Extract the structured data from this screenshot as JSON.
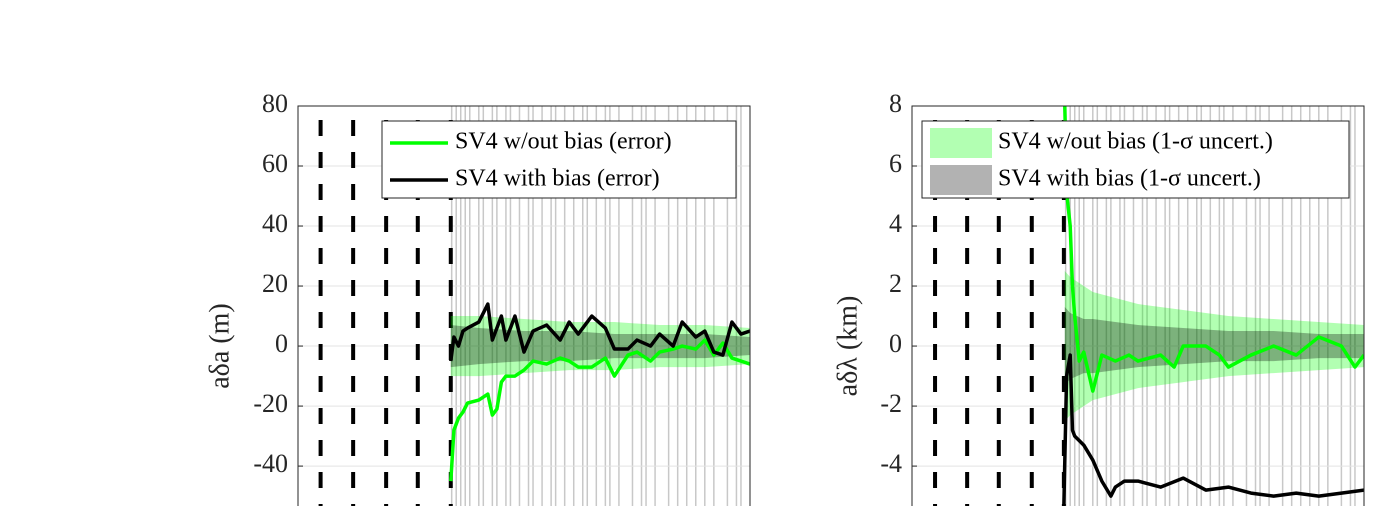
{
  "chart_data": [
    {
      "type": "line",
      "ylabel": "aδa (m)",
      "xlim": [
        0,
        100
      ],
      "ylim": [
        -53.3,
        80
      ],
      "yticks": [
        -40,
        -20,
        0,
        20,
        40,
        60,
        80
      ],
      "grid": true,
      "legend": "upper right",
      "legend_from": "series",
      "dashed_x": [
        5,
        12.2,
        19.5,
        26.5,
        33.8
      ],
      "vlines_x": [
        34,
        35,
        36,
        37,
        38,
        40,
        41,
        43,
        44,
        46,
        47,
        49,
        51,
        52,
        54,
        56,
        57,
        59,
        61,
        63,
        64,
        66,
        68,
        69,
        71,
        74,
        76,
        77,
        79,
        82,
        84,
        86,
        88,
        90,
        92,
        95,
        97,
        98
      ],
      "bands": [
        {
          "color": "#00ff00",
          "opacity": 0.3,
          "x": [
            33.8,
            40,
            50,
            60,
            70,
            80,
            90,
            100
          ],
          "values": [
            10,
            10,
            9,
            8,
            8,
            7,
            7,
            6
          ]
        },
        {
          "color": "#000000",
          "opacity": 0.3,
          "x": [
            33.8,
            40,
            50,
            60,
            70,
            80,
            90,
            100
          ],
          "values": [
            7,
            6,
            5,
            5,
            4,
            4,
            4,
            3
          ]
        }
      ],
      "series": [
        {
          "name": "SV4 w/out bias (error)",
          "color": "#00ff00",
          "x": [
            33.8,
            34.5,
            35.5,
            36.5,
            37.5,
            40,
            42,
            43,
            44,
            45,
            46,
            48,
            50,
            52,
            55,
            58,
            60,
            62,
            65,
            68,
            70,
            73,
            75,
            78,
            80,
            83,
            85,
            88,
            90,
            92,
            94,
            96,
            98,
            100
          ],
          "values": [
            -45,
            -28,
            -24,
            -22,
            -19,
            -18,
            -16,
            -23,
            -21,
            -12,
            -10,
            -10,
            -8,
            -5,
            -6,
            -4,
            -5,
            -7,
            -7,
            -4,
            -10,
            -3,
            -2,
            -5,
            -2,
            -1,
            0,
            -1,
            2,
            -3,
            1,
            -4,
            -5,
            -6
          ]
        },
        {
          "name": "SV4 with bias (error)",
          "color": "#000000",
          "x": [
            33.8,
            34.5,
            35.5,
            36.5,
            37.5,
            40,
            42,
            43,
            44,
            45,
            46,
            48,
            50,
            52,
            55,
            58,
            60,
            62,
            65,
            68,
            70,
            73,
            75,
            78,
            80,
            83,
            85,
            88,
            90,
            92,
            94,
            96,
            98,
            100
          ],
          "values": [
            -5,
            3,
            0,
            5,
            6,
            8,
            14,
            2,
            6,
            10,
            2,
            10,
            -2,
            5,
            7,
            2,
            8,
            4,
            10,
            6,
            -1,
            -1,
            2,
            0,
            4,
            0,
            8,
            3,
            5,
            -2,
            -3,
            8,
            4,
            5
          ]
        }
      ]
    },
    {
      "type": "line",
      "ylabel": "aδλ (km)",
      "xlim": [
        0,
        100
      ],
      "ylim": [
        -5.33,
        8
      ],
      "yticks": [
        -4,
        -2,
        0,
        2,
        4,
        6,
        8
      ],
      "grid": true,
      "legend": "upper left",
      "legend_from": "bands",
      "dashed_x": [
        5.1,
        12.2,
        19.2,
        26.5,
        33.6
      ],
      "vlines_x": [
        34,
        35,
        36,
        37,
        38,
        40,
        41,
        43,
        44,
        46,
        47,
        49,
        51,
        52,
        54,
        56,
        57,
        59,
        61,
        63,
        64,
        66,
        68,
        69,
        71,
        74,
        76,
        77,
        79,
        82,
        84,
        86,
        88,
        90,
        92,
        95,
        97,
        98
      ],
      "bands": [
        {
          "name": "SV4 w/out bias (1-σ uncert.)",
          "color": "#00ff00",
          "opacity": 0.3,
          "x": [
            33.8,
            35,
            38,
            40,
            50,
            60,
            70,
            80,
            90,
            100
          ],
          "values": [
            2.5,
            2.3,
            2,
            1.8,
            1.4,
            1.2,
            1,
            0.9,
            0.8,
            0.7
          ]
        },
        {
          "name": "SV4 with bias (1-σ uncert.)",
          "color": "#000000",
          "opacity": 0.3,
          "x": [
            33.8,
            35,
            38,
            40,
            50,
            60,
            70,
            80,
            90,
            100
          ],
          "values": [
            1.3,
            1.1,
            0.9,
            0.9,
            0.7,
            0.6,
            0.5,
            0.5,
            0.4,
            0.4
          ]
        }
      ],
      "series": [
        {
          "color": "#00ff00",
          "x": [
            33.8,
            34.3,
            35,
            35.5,
            36,
            37,
            38,
            40,
            42,
            45,
            48,
            50,
            55,
            58,
            60,
            65,
            68,
            70,
            75,
            80,
            85,
            90,
            95,
            98,
            100
          ],
          "values": [
            8,
            5,
            4,
            2,
            1,
            -0.5,
            -0.2,
            -1.5,
            -0.3,
            -0.5,
            -0.3,
            -0.5,
            -0.3,
            -0.7,
            0,
            0,
            -0.3,
            -0.7,
            -0.3,
            0,
            -0.3,
            0.3,
            0,
            -0.7,
            -0.3
          ]
        },
        {
          "color": "#000000",
          "x": [
            33.6,
            34.2,
            35,
            35.5,
            36,
            38,
            40,
            42,
            44,
            45,
            47,
            50,
            55,
            60,
            65,
            70,
            75,
            80,
            85,
            90,
            95,
            100
          ],
          "values": [
            -5.3,
            -1,
            -0.3,
            -2.8,
            -3,
            -3.3,
            -3.8,
            -4.5,
            -5,
            -4.7,
            -4.5,
            -4.5,
            -4.7,
            -4.4,
            -4.8,
            -4.7,
            -4.9,
            -5,
            -4.9,
            -5,
            -4.9,
            -4.8
          ]
        }
      ]
    }
  ]
}
